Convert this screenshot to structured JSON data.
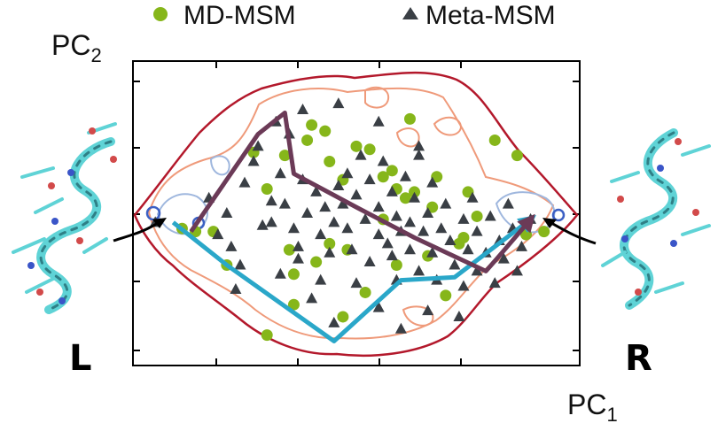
{
  "figure": {
    "legend": [
      {
        "label": "MD-MSM",
        "marker": "circle",
        "color": "#86b61a"
      },
      {
        "label": "Meta-MSM",
        "marker": "triangle",
        "color": "#3a3f45"
      }
    ],
    "axes": {
      "x_label_main": "PC",
      "x_label_sub": "1",
      "y_label_main": "PC",
      "y_label_sub": "2"
    },
    "states": [
      {
        "label": "L",
        "side": "left"
      },
      {
        "label": "R",
        "side": "right"
      }
    ],
    "colors": {
      "outer_contour": "#b3182b",
      "inner_contour": "#ef9a7a",
      "basin_contour": "#9fb7de",
      "basin_ring": "#3b5fc4",
      "path_md": "#2aa7c9",
      "path_meta": "#6b3a57",
      "md_points": "#86b61a",
      "meta_points": "#3a3f45",
      "helix": "#5fd3d6"
    }
  },
  "chart_data": {
    "type": "scatter",
    "xlabel": "PC1",
    "ylabel": "PC2",
    "xlim": [
      0,
      100
    ],
    "ylim": [
      0,
      100
    ],
    "series": [
      {
        "name": "MD-MSM",
        "marker": "circle",
        "points": [
          [
            11,
            45
          ],
          [
            14,
            44
          ],
          [
            18,
            44
          ],
          [
            21,
            33
          ],
          [
            27,
            70
          ],
          [
            30,
            58
          ],
          [
            34,
            69
          ],
          [
            35,
            38
          ],
          [
            36,
            30
          ],
          [
            39,
            74
          ],
          [
            40,
            79
          ],
          [
            43,
            77
          ],
          [
            44,
            67
          ],
          [
            47,
            61
          ],
          [
            48,
            38
          ],
          [
            50,
            72
          ],
          [
            53,
            71
          ],
          [
            56,
            62
          ],
          [
            56,
            48
          ],
          [
            58,
            64
          ],
          [
            59,
            33
          ],
          [
            62,
            81
          ],
          [
            63,
            57
          ],
          [
            66,
            36
          ],
          [
            67,
            52
          ],
          [
            68,
            62
          ],
          [
            70,
            23
          ],
          [
            73,
            40
          ],
          [
            74,
            42
          ],
          [
            75,
            57
          ],
          [
            77,
            49
          ],
          [
            81,
            74
          ],
          [
            86,
            69
          ],
          [
            88,
            43
          ],
          [
            92,
            44
          ],
          [
            44,
            40
          ],
          [
            36,
            20
          ],
          [
            30,
            10
          ],
          [
            61,
            55
          ],
          [
            41,
            34
          ],
          [
            52,
            24
          ],
          [
            47,
            16
          ],
          [
            59,
            58
          ]
        ]
      },
      {
        "name": "Meta-MSM",
        "marker": "triangle",
        "points": [
          [
            5,
            47
          ],
          [
            17,
            55
          ],
          [
            19,
            43
          ],
          [
            22,
            39
          ],
          [
            23,
            25
          ],
          [
            25,
            60
          ],
          [
            27,
            67
          ],
          [
            28,
            72
          ],
          [
            29,
            46
          ],
          [
            31,
            54
          ],
          [
            31,
            47
          ],
          [
            33,
            63
          ],
          [
            34,
            53
          ],
          [
            36,
            45
          ],
          [
            37,
            39
          ],
          [
            38,
            61
          ],
          [
            39,
            50
          ],
          [
            41,
            57
          ],
          [
            42,
            43
          ],
          [
            43,
            52
          ],
          [
            44,
            37
          ],
          [
            45,
            47
          ],
          [
            46,
            59
          ],
          [
            47,
            53
          ],
          [
            48,
            63
          ],
          [
            48,
            45
          ],
          [
            49,
            38
          ],
          [
            50,
            56
          ],
          [
            51,
            69
          ],
          [
            52,
            48
          ],
          [
            53,
            34
          ],
          [
            53,
            61
          ],
          [
            55,
            52
          ],
          [
            55,
            43
          ],
          [
            56,
            67
          ],
          [
            57,
            40
          ],
          [
            58,
            57
          ],
          [
            59,
            49
          ],
          [
            59,
            28
          ],
          [
            60,
            44
          ],
          [
            61,
            62
          ],
          [
            62,
            47
          ],
          [
            62,
            38
          ],
          [
            63,
            55
          ],
          [
            64,
            31
          ],
          [
            64,
            69
          ],
          [
            65,
            44
          ],
          [
            66,
            50
          ],
          [
            67,
            60
          ],
          [
            67,
            37
          ],
          [
            68,
            28
          ],
          [
            69,
            45
          ],
          [
            70,
            53
          ],
          [
            71,
            41
          ],
          [
            72,
            33
          ],
          [
            74,
            48
          ],
          [
            74,
            26
          ],
          [
            75,
            38
          ],
          [
            76,
            55
          ],
          [
            77,
            31
          ],
          [
            77,
            44
          ],
          [
            79,
            37
          ],
          [
            80,
            49
          ],
          [
            81,
            27
          ],
          [
            82,
            41
          ],
          [
            83,
            35
          ],
          [
            84,
            53
          ],
          [
            85,
            45
          ],
          [
            86,
            31
          ],
          [
            87,
            39
          ],
          [
            89,
            48
          ],
          [
            35,
            76
          ],
          [
            32,
            80
          ],
          [
            38,
            84
          ],
          [
            46,
            86
          ],
          [
            55,
            80
          ],
          [
            64,
            72
          ],
          [
            33,
            30
          ],
          [
            40,
            22
          ],
          [
            45,
            14
          ],
          [
            50,
            27
          ],
          [
            55,
            19
          ],
          [
            42,
            28
          ],
          [
            37,
            35
          ],
          [
            24,
            33
          ],
          [
            21,
            50
          ],
          [
            66,
            18
          ],
          [
            60,
            12
          ],
          [
            73,
            16
          ],
          [
            58,
            36
          ]
        ]
      }
    ],
    "paths": [
      {
        "name": "",
        "points": [
          [
            9,
            47
          ],
          [
            21,
            33
          ],
          [
            45,
            8
          ],
          [
            60,
            28
          ],
          [
            72,
            29
          ],
          [
            89,
            48
          ]
        ]
      },
      {
        "name": "",
        "points": [
          [
            13,
            44
          ],
          [
            28,
            76
          ],
          [
            34,
            83
          ],
          [
            36,
            63
          ],
          [
            50,
            52
          ],
          [
            63,
            42
          ],
          [
            79,
            31
          ],
          [
            82,
            36
          ],
          [
            89,
            48
          ]
        ]
      }
    ],
    "grid": false,
    "legend_position": "top"
  }
}
